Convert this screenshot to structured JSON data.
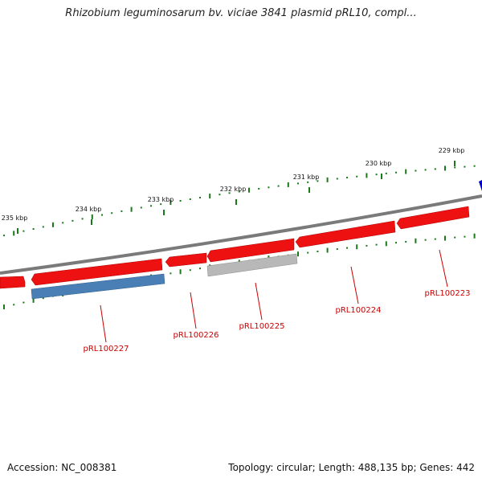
{
  "title": "Rhizobium leguminosarum bv. viciae 3841 plasmid pRL10, compl...",
  "footer": {
    "accession_label": "Accession: NC_008381",
    "summary_label": "Topology: circular; Length: 488,135 bp; Genes: 442"
  },
  "scale_ticks": [
    {
      "label": "229 kbp"
    },
    {
      "label": "230 kbp"
    },
    {
      "label": "231 kbp"
    },
    {
      "label": "232 kbp"
    },
    {
      "label": "233 kbp"
    },
    {
      "label": "234 kbp"
    },
    {
      "label": "235 kbp"
    }
  ],
  "gene_labels": [
    {
      "label": "pRL100223"
    },
    {
      "label": "pRL100224"
    },
    {
      "label": "pRL100225"
    },
    {
      "label": "pRL100226"
    },
    {
      "label": "pRL100227"
    }
  ],
  "colors": {
    "backbone": "#808080",
    "gene_red": "#ee1111",
    "gene_blue": "#4a7fb5",
    "gene_grey": "#b8b8b8",
    "gc_skew_tick": "#1a7a1a",
    "marker_blue": "#0000cc",
    "gene_label": "#cc0000"
  }
}
